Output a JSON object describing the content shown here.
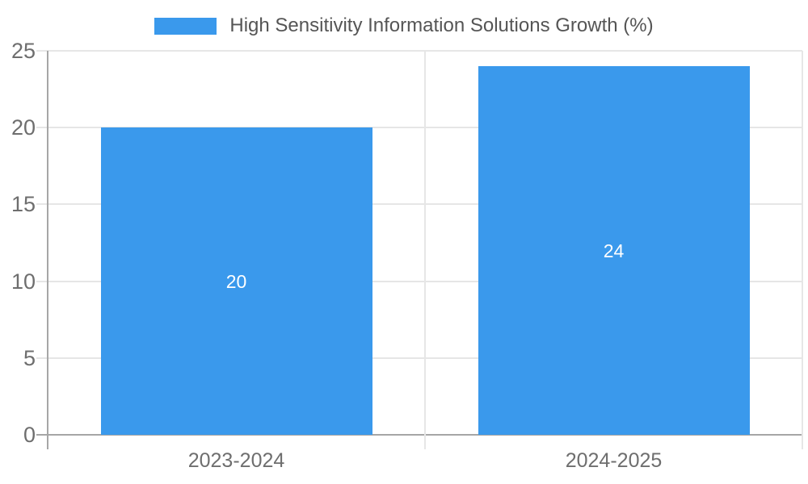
{
  "legend": {
    "label": "High Sensitivity Information Solutions Growth (%)"
  },
  "chart_data": {
    "type": "bar",
    "title": "High Sensitivity Information Solutions Growth (%)",
    "categories": [
      "2023-2024",
      "2024-2025"
    ],
    "values": [
      20,
      24
    ],
    "bar_labels": [
      "20",
      "24"
    ],
    "xlabel": "",
    "ylabel": "",
    "ylim": [
      0,
      25
    ],
    "yticks": [
      0,
      5,
      10,
      15,
      20,
      25
    ],
    "grid": true,
    "legend_position": "top-center",
    "colors": {
      "bar": "#3a99ec",
      "grid": "#e6e6e6",
      "axis": "#a6a6a6",
      "tick_text": "#6e6e6e",
      "legend_text": "#555555",
      "bar_label_text": "#ffffff"
    }
  }
}
